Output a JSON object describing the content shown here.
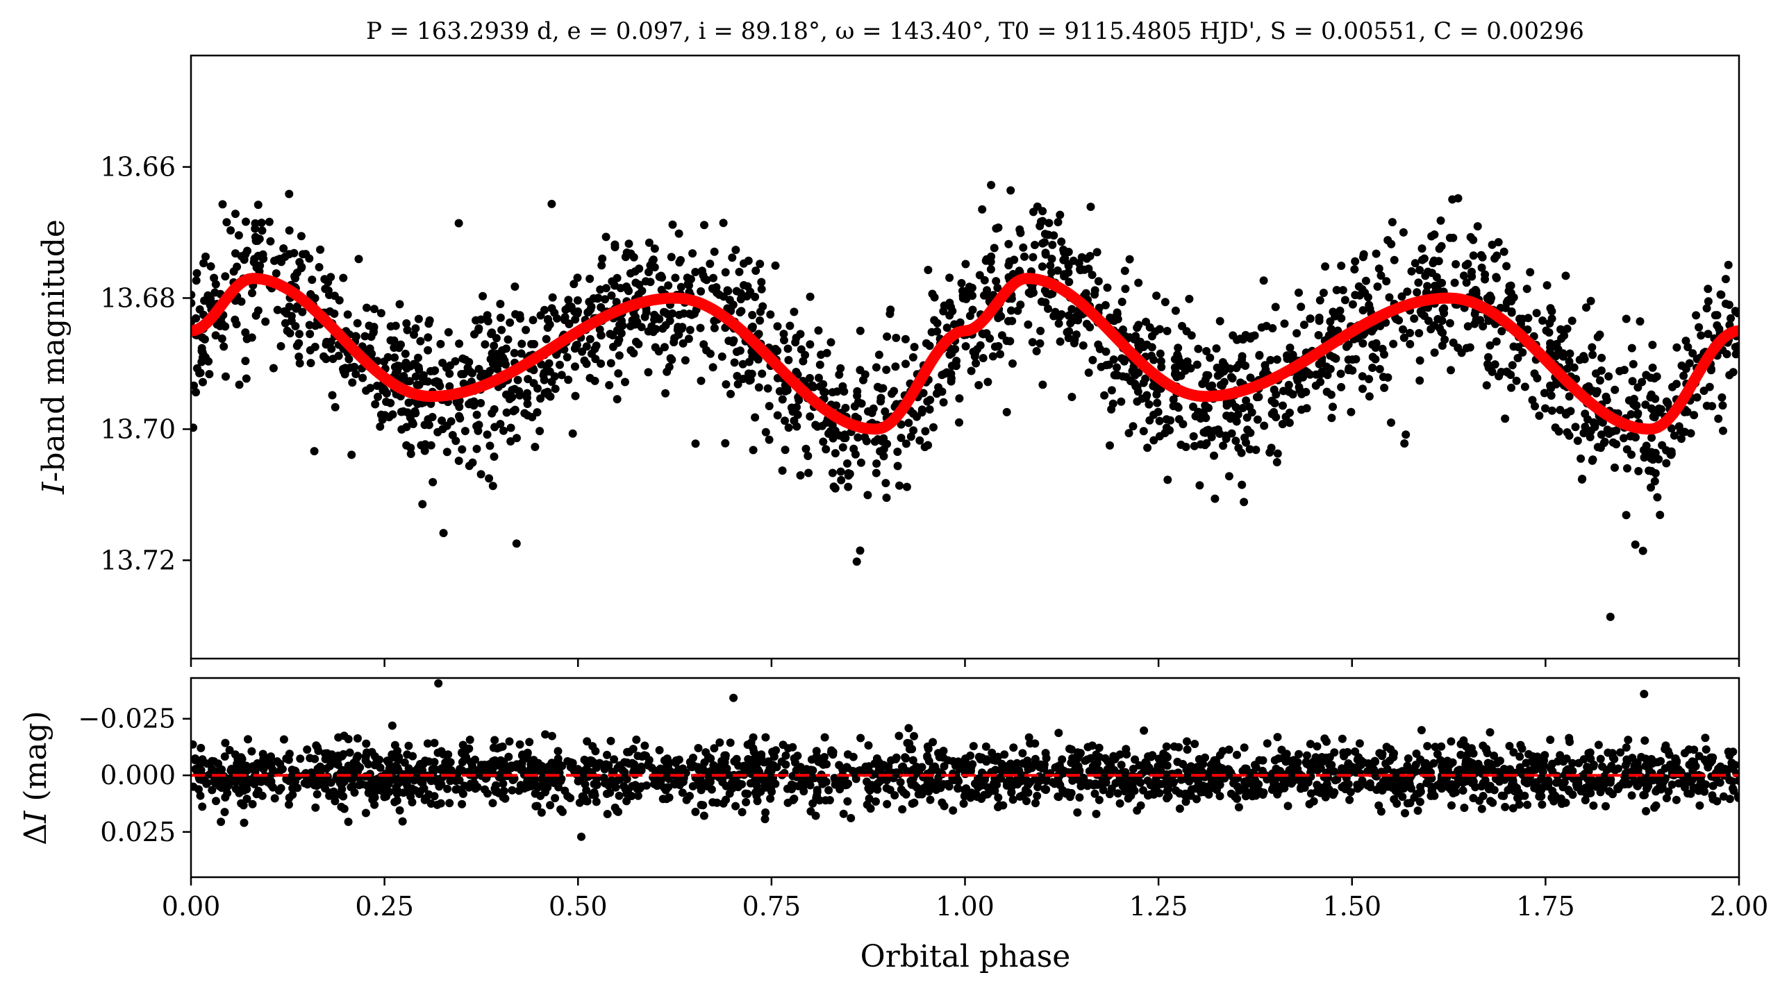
{
  "chart_data": [
    {
      "type": "scatter",
      "panel": "light-curve",
      "title": "P = 163.2939 d, e = 0.097, i = 89.18°, ω = 143.40°, T0 = 9115.4805 HJD', S = 0.00551, C = 0.00296",
      "xlabel": "",
      "ylabel": "I-band magnitude",
      "xlim": [
        0.0,
        2.0
      ],
      "ylim": [
        13.735,
        13.643
      ],
      "y_inverted": true,
      "yticks": [
        13.66,
        13.68,
        13.7,
        13.72
      ],
      "ytick_labels": [
        "13.66",
        "13.68",
        "13.70",
        "13.72"
      ],
      "grid": false,
      "series": [
        {
          "name": "observations",
          "kind": "scatter",
          "color": "#000000",
          "note": "dense cloud of photometric points following the model curve",
          "scatter_sigma": 0.0055,
          "point_count": 2400
        },
        {
          "name": "model",
          "kind": "line",
          "color": "#ff0000",
          "x": [
            0.0,
            0.08,
            0.31,
            0.625,
            0.885,
            1.0,
            1.08,
            1.31,
            1.625,
            1.885,
            2.0
          ],
          "y": [
            13.685,
            13.677,
            13.695,
            13.68,
            13.7,
            13.685,
            13.677,
            13.695,
            13.68,
            13.7,
            13.685
          ]
        }
      ]
    },
    {
      "type": "scatter",
      "panel": "residuals",
      "xlabel": "Orbital phase",
      "ylabel": "ΔI (mag)",
      "xlim": [
        0.0,
        2.0
      ],
      "ylim": [
        0.045,
        -0.043
      ],
      "y_inverted": true,
      "xticks": [
        0.0,
        0.25,
        0.5,
        0.75,
        1.0,
        1.25,
        1.5,
        1.75,
        2.0
      ],
      "xtick_labels": [
        "0.00",
        "0.25",
        "0.50",
        "0.75",
        "1.00",
        "1.25",
        "1.50",
        "1.75",
        "2.00"
      ],
      "yticks": [
        -0.025,
        0.0,
        0.025
      ],
      "ytick_labels": [
        "−0.025",
        "0.000",
        "0.025"
      ],
      "grid": false,
      "series": [
        {
          "name": "residuals",
          "kind": "scatter",
          "color": "#000000",
          "scatter_sigma": 0.0065,
          "point_count": 2400
        },
        {
          "name": "zero-line",
          "kind": "hline",
          "color": "#ff0000",
          "linestyle": "dashed",
          "y": 0.0
        }
      ]
    }
  ]
}
